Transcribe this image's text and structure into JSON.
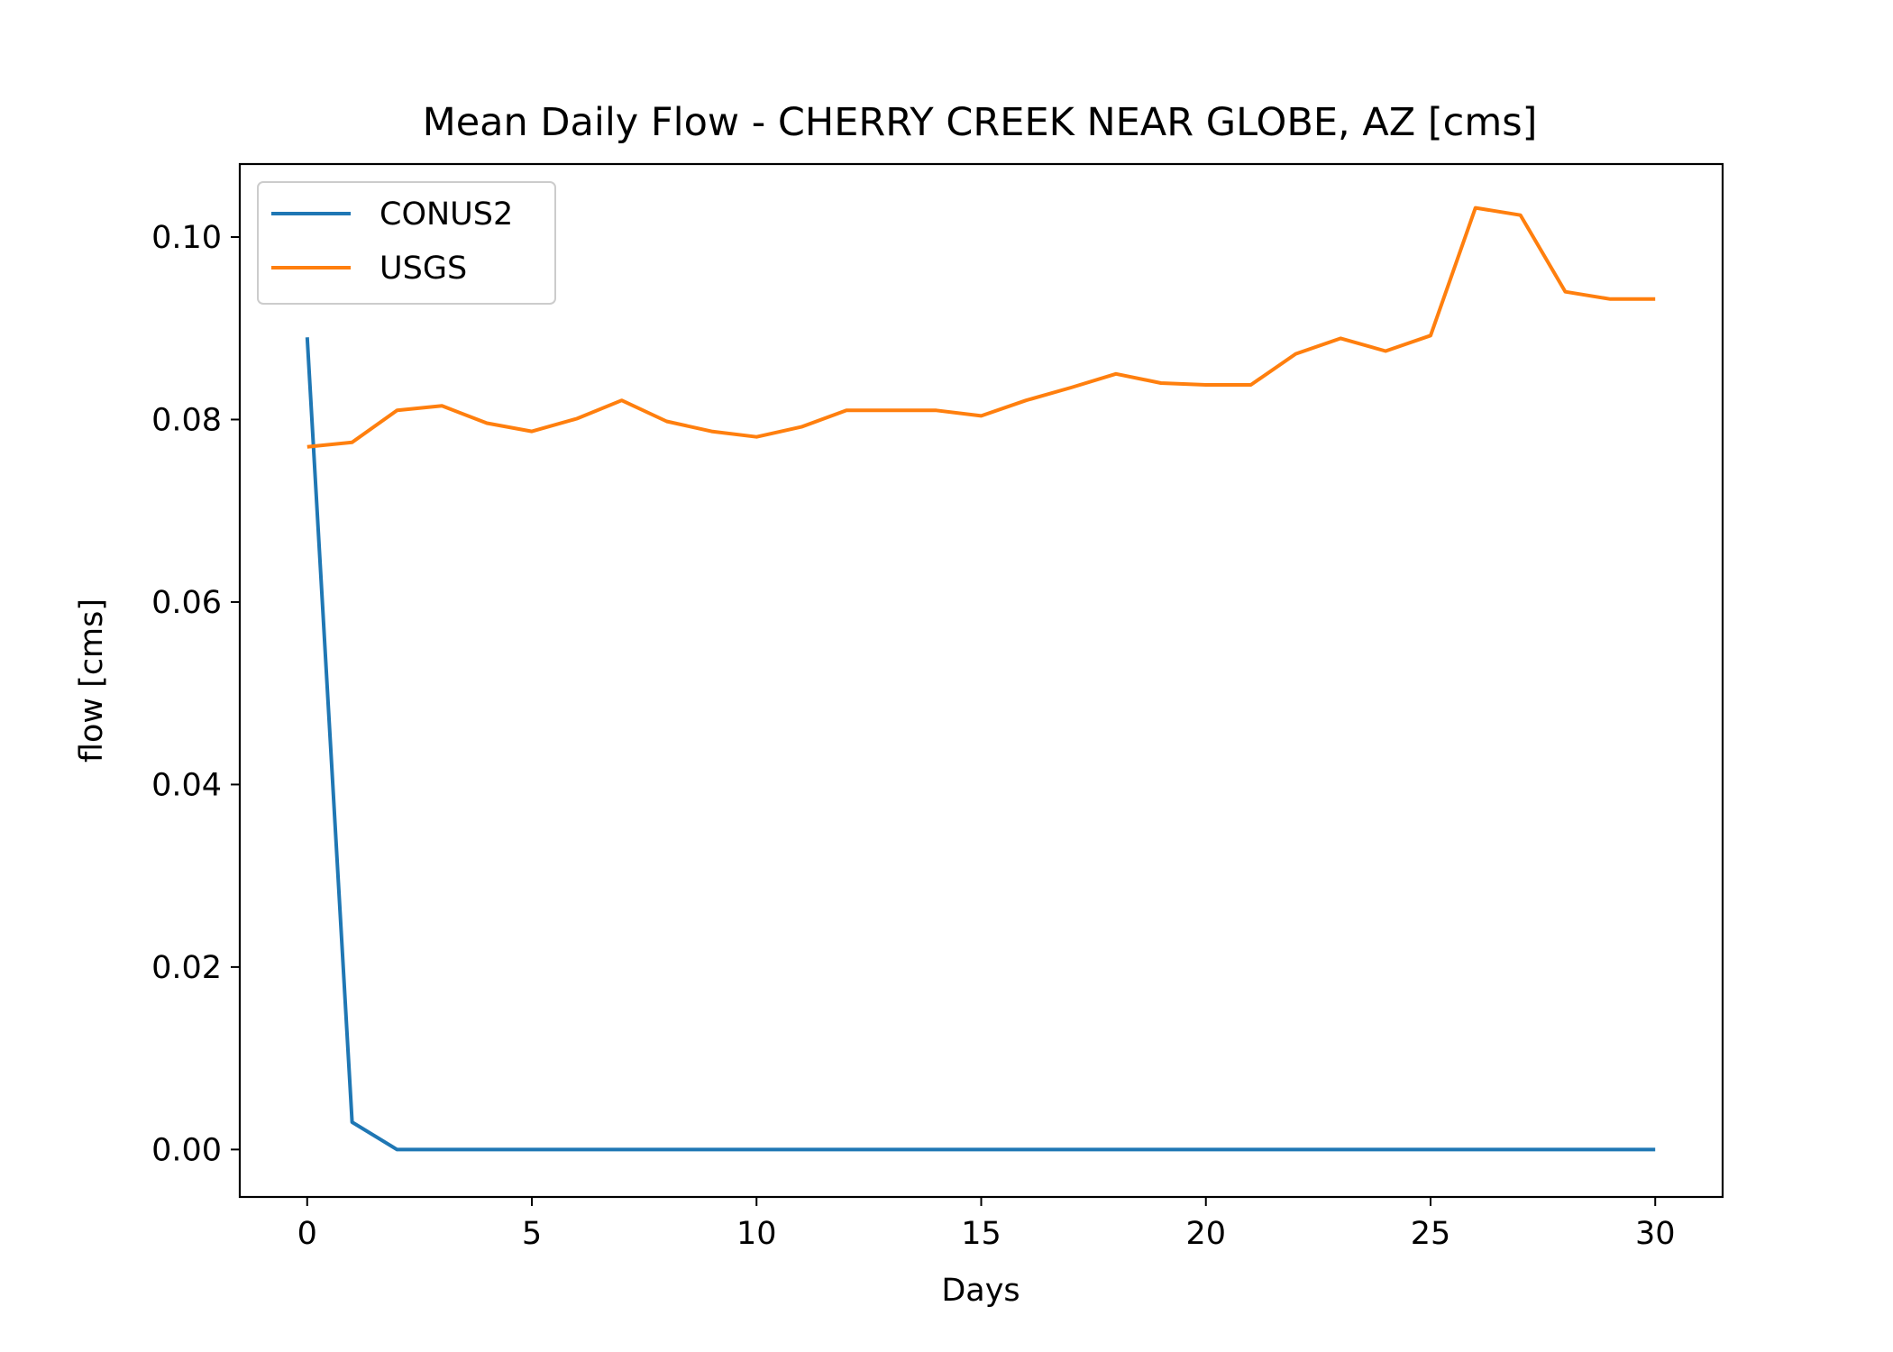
{
  "chart_data": {
    "type": "line",
    "title": "Mean Daily Flow - CHERRY CREEK NEAR GLOBE, AZ [cms]",
    "xlabel": "Days",
    "ylabel": "flow [cms]",
    "xlim": [
      -1.5,
      31.5
    ],
    "ylim": [
      -0.0052,
      0.108
    ],
    "xticks": [
      0,
      5,
      10,
      15,
      20,
      25,
      30
    ],
    "xtick_labels": [
      "0",
      "5",
      "10",
      "15",
      "20",
      "25",
      "30"
    ],
    "yticks": [
      0.0,
      0.02,
      0.04,
      0.06,
      0.08,
      0.1
    ],
    "ytick_labels": [
      "0.00",
      "0.02",
      "0.04",
      "0.06",
      "0.08",
      "0.10"
    ],
    "grid": false,
    "legend_position": "upper-left",
    "x": [
      0,
      1,
      2,
      3,
      4,
      5,
      6,
      7,
      8,
      9,
      10,
      11,
      12,
      13,
      14,
      15,
      16,
      17,
      18,
      19,
      20,
      21,
      22,
      23,
      24,
      25,
      26,
      27,
      28,
      29,
      30
    ],
    "series": [
      {
        "name": "CONUS2",
        "color": "#1f77b4",
        "values": [
          0.089,
          0.003,
          0,
          0,
          0,
          0,
          0,
          0,
          0,
          0,
          0,
          0,
          0,
          0,
          0,
          0,
          0,
          0,
          0,
          0,
          0,
          0,
          0,
          0,
          0,
          0,
          0,
          0,
          0,
          0,
          0
        ]
      },
      {
        "name": "USGS",
        "color": "#ff7f0e",
        "values": [
          0.077,
          0.0775,
          0.081,
          0.0815,
          0.0796,
          0.0787,
          0.0801,
          0.0821,
          0.0798,
          0.0787,
          0.0781,
          0.0792,
          0.081,
          0.081,
          0.081,
          0.0804,
          0.0821,
          0.0835,
          0.085,
          0.084,
          0.0838,
          0.0838,
          0.0872,
          0.0889,
          0.0875,
          0.0892,
          0.1032,
          0.1024,
          0.094,
          0.0932,
          0.0932
        ]
      }
    ]
  }
}
